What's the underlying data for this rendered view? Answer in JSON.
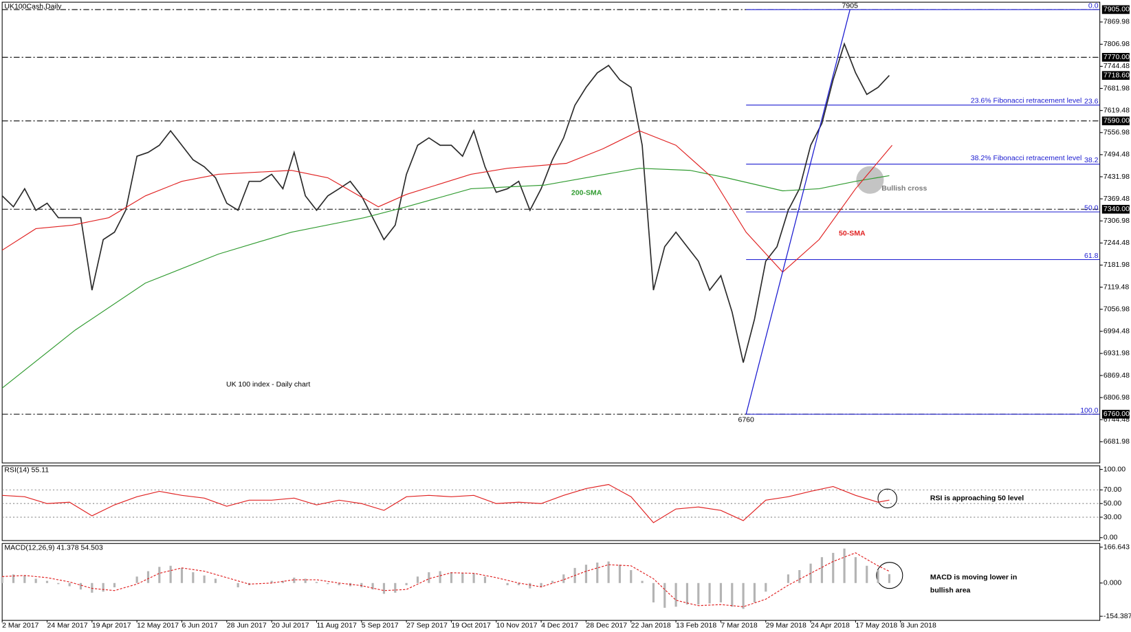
{
  "chart_data": [
    {
      "type": "line",
      "title": "UK100Cash,Daily",
      "xlim": [
        0,
        391
      ],
      "ylim": [
        6622,
        7926
      ],
      "yticks": [
        7869.98,
        7806.98,
        7744.48,
        7681.98,
        7619.48,
        7556.98,
        7494.48,
        7431.98,
        7369.48,
        7306.98,
        7244.48,
        7181.98,
        7119.48,
        7056.98,
        6994.48,
        6931.98,
        6869.48,
        6806.98,
        6744.48,
        6681.98
      ],
      "highlight_ticks": [
        {
          "value": 7905,
          "label": "7905.00"
        },
        {
          "value": 7770,
          "label": "7770.00"
        },
        {
          "value": 7718.6,
          "label": "7718.60"
        },
        {
          "value": 7590,
          "label": "7590.00"
        },
        {
          "value": 7340,
          "label": "7340.00"
        },
        {
          "value": 6760,
          "label": "6760.00"
        }
      ],
      "levels": [
        7905,
        7770,
        7590,
        7340,
        6760
      ],
      "series": [
        {
          "color": "#2a2a2a",
          "x": [
            0,
            4,
            8,
            12,
            16,
            20,
            24,
            28,
            32,
            36,
            40,
            44,
            48,
            52,
            56,
            60,
            64,
            68,
            72,
            76,
            80,
            84,
            88,
            92,
            96,
            100,
            104,
            108,
            112,
            116,
            120,
            124,
            128,
            132,
            136,
            140,
            144,
            148,
            152,
            156,
            160,
            164,
            168,
            172,
            176,
            180,
            184,
            188,
            192,
            196,
            200,
            204,
            208,
            212,
            216,
            220,
            224,
            228,
            232,
            236,
            240,
            244,
            248,
            252,
            256,
            260,
            264,
            268,
            272,
            276,
            280,
            284,
            288,
            292,
            296,
            300,
            304,
            308,
            312,
            316
          ],
          "values": [
            7378,
            7347,
            7398,
            7337,
            7357,
            7316,
            7316,
            7316,
            7111,
            7254,
            7275,
            7337,
            7490,
            7501,
            7521,
            7562,
            7521,
            7480,
            7460,
            7429,
            7357,
            7337,
            7419,
            7419,
            7439,
            7398,
            7501,
            7378,
            7337,
            7378,
            7398,
            7419,
            7378,
            7316,
            7254,
            7295,
            7439,
            7521,
            7542,
            7521,
            7521,
            7490,
            7562,
            7460,
            7388,
            7398,
            7419,
            7337,
            7398,
            7480,
            7542,
            7634,
            7685,
            7726,
            7747,
            7706,
            7685,
            7521,
            7111,
            7234,
            7275,
            7234,
            7193,
            7111,
            7152,
            7049,
            6906,
            7029,
            7193,
            7234,
            7337,
            7398,
            7521,
            7583,
            7706,
            7808,
            7726,
            7665,
            7685,
            7718.6
          ]
        },
        {
          "name": "200-SMA",
          "color": "#2e9a2e",
          "x": [
            0,
            26,
            51,
            77,
            103,
            129,
            144,
            167,
            193,
            227,
            245,
            258,
            278,
            291,
            304,
            316
          ],
          "values": [
            6834,
            6998,
            7131,
            7213,
            7275,
            7316,
            7347,
            7398,
            7408,
            7456,
            7450,
            7429,
            7392,
            7398,
            7419,
            7435
          ]
        },
        {
          "name": "50-SMA",
          "color": "#e02020",
          "x": [
            0,
            12,
            25,
            38,
            51,
            64,
            77,
            103,
            116,
            134,
            144,
            167,
            180,
            201,
            214,
            227,
            240,
            253,
            265,
            278,
            291,
            304,
            317
          ],
          "values": [
            7224,
            7285,
            7295,
            7316,
            7378,
            7419,
            7439,
            7450,
            7429,
            7347,
            7382,
            7439,
            7456,
            7470,
            7511,
            7562,
            7521,
            7429,
            7275,
            7162,
            7254,
            7398,
            7521
          ]
        }
      ],
      "trendline": {
        "x": [
          265,
          302
        ],
        "y": [
          6760,
          7905
        ]
      },
      "peak_label": 7905,
      "trough_label": 6760,
      "fibonacci": {
        "x_start": 265,
        "color": "#1a1ad0",
        "levels": [
          {
            "value": 7905,
            "label": "0.0"
          },
          {
            "value": 7634.78,
            "label": "23.6"
          },
          {
            "value": 7467.61,
            "label": "38.2"
          },
          {
            "value": 7332.5,
            "label": "50.0"
          },
          {
            "value": 7197.39,
            "label": "61.8"
          },
          {
            "value": 6760,
            "label": "100.0"
          }
        ]
      },
      "annotations": [
        "UK 100 index - Daily chart",
        "23.6% Fibonacci retracement level",
        "38.2% Fibonacci retracement level",
        "Bullish cross"
      ]
    },
    {
      "type": "line",
      "title": "RSI(14) 55.11",
      "xlim": [
        0,
        391
      ],
      "ylim": [
        -4.3,
        105.3
      ],
      "yticks": [
        {
          "value": 100,
          "label": "100.00"
        },
        {
          "value": 70,
          "label": "70.00"
        },
        {
          "value": 50,
          "label": "50.00"
        },
        {
          "value": 30,
          "label": "30.00"
        },
        {
          "value": 0,
          "label": "0.00"
        }
      ],
      "levels": [
        70,
        50,
        30
      ],
      "series": [
        {
          "color": "#e02020",
          "x": [
            0,
            8,
            16,
            24,
            32,
            40,
            48,
            56,
            64,
            72,
            80,
            88,
            96,
            104,
            112,
            120,
            128,
            136,
            144,
            152,
            160,
            168,
            176,
            184,
            192,
            200,
            208,
            216,
            224,
            232,
            240,
            248,
            256,
            264,
            272,
            280,
            288,
            296,
            304,
            312,
            316
          ],
          "values": [
            62,
            60,
            50,
            52,
            32,
            48,
            60,
            68,
            62,
            58,
            46,
            55,
            55,
            58,
            48,
            55,
            50,
            40,
            60,
            62,
            60,
            62,
            50,
            52,
            50,
            62,
            72,
            78,
            60,
            22,
            42,
            45,
            40,
            25,
            55,
            60,
            68,
            75,
            62,
            52,
            55.11
          ]
        }
      ],
      "annotations": [
        "RSI is approaching 50 level"
      ]
    },
    {
      "type": "macd",
      "title": "MACD(12,26,9) 41.378 54.503",
      "xlim": [
        0,
        391
      ],
      "ylim": [
        -173.5,
        183.6
      ],
      "yticks": [
        166.643,
        {
          "value": 0,
          "label": "0.000"
        },
        -154.387
      ],
      "xticks": [
        {
          "value": 0,
          "label": "2 Mar 2017"
        },
        {
          "value": 16,
          "label": "24 Mar 2017"
        },
        {
          "value": 32,
          "label": "19 Apr 2017"
        },
        {
          "value": 48,
          "label": "12 May 2017"
        },
        {
          "value": 64,
          "label": "6 Jun 2017"
        },
        {
          "value": 80,
          "label": "28 Jun 2017"
        },
        {
          "value": 96,
          "label": "20 Jul 2017"
        },
        {
          "value": 112,
          "label": "11 Aug 2017"
        },
        {
          "value": 128,
          "label": "5 Sep 2017"
        },
        {
          "value": 144,
          "label": "27 Sep 2017"
        },
        {
          "value": 160,
          "label": "19 Oct 2017"
        },
        {
          "value": 176,
          "label": "10 Nov 2017"
        },
        {
          "value": 192,
          "label": "4 Dec 2017"
        },
        {
          "value": 208,
          "label": "28 Dec 2017"
        },
        {
          "value": 224,
          "label": "22 Jan 2018"
        },
        {
          "value": 240,
          "label": "13 Feb 2018"
        },
        {
          "value": 256,
          "label": "7 Mar 2018"
        },
        {
          "value": 272,
          "label": "29 Mar 2018"
        },
        {
          "value": 288,
          "label": "24 Apr 2018"
        },
        {
          "value": 304,
          "label": "17 May 2018"
        },
        {
          "value": 320,
          "label": "8 Jun 2018"
        }
      ],
      "histogram": {
        "color": "#b4b4b4",
        "x": [
          0,
          4,
          8,
          12,
          16,
          20,
          24,
          28,
          32,
          36,
          40,
          44,
          48,
          52,
          56,
          60,
          64,
          68,
          72,
          76,
          80,
          84,
          88,
          92,
          96,
          100,
          104,
          108,
          112,
          116,
          120,
          124,
          128,
          132,
          136,
          140,
          144,
          148,
          152,
          156,
          160,
          164,
          168,
          172,
          176,
          180,
          184,
          188,
          192,
          196,
          200,
          204,
          208,
          212,
          216,
          220,
          224,
          228,
          232,
          236,
          240,
          244,
          248,
          252,
          256,
          260,
          264,
          268,
          272,
          276,
          280,
          284,
          288,
          292,
          296,
          300,
          304,
          308,
          312,
          316
        ],
        "values": [
          30,
          40,
          35,
          20,
          10,
          -5,
          -15,
          -30,
          -45,
          -40,
          -20,
          0,
          30,
          55,
          75,
          80,
          70,
          50,
          35,
          20,
          0,
          -20,
          -10,
          0,
          10,
          10,
          25,
          20,
          5,
          -5,
          -10,
          -15,
          -20,
          -30,
          -50,
          -45,
          -10,
          30,
          50,
          55,
          50,
          45,
          45,
          30,
          0,
          -10,
          -10,
          -25,
          -20,
          10,
          40,
          70,
          85,
          95,
          100,
          85,
          60,
          10,
          -90,
          -115,
          -110,
          -100,
          -100,
          -95,
          -90,
          -110,
          -120,
          -90,
          -40,
          0,
          40,
          60,
          90,
          120,
          140,
          160,
          120,
          80,
          60,
          41.378
        ]
      },
      "signal": {
        "color": "#e02020",
        "x": [
          0,
          8,
          16,
          24,
          32,
          40,
          48,
          56,
          64,
          72,
          80,
          88,
          96,
          104,
          112,
          120,
          128,
          136,
          144,
          152,
          160,
          168,
          176,
          184,
          192,
          200,
          208,
          216,
          224,
          232,
          240,
          248,
          256,
          264,
          272,
          280,
          288,
          296,
          304,
          312,
          316
        ],
        "values": [
          30,
          35,
          25,
          5,
          -25,
          -35,
          -5,
          45,
          70,
          55,
          25,
          -5,
          0,
          15,
          15,
          0,
          -12,
          -35,
          -30,
          20,
          48,
          45,
          25,
          0,
          -18,
          15,
          55,
          85,
          80,
          20,
          -80,
          -105,
          -100,
          -110,
          -75,
          -10,
          45,
          100,
          140,
          80,
          54.503
        ]
      },
      "annotations": [
        "MACD is moving lower in",
        "bullish area"
      ]
    }
  ]
}
